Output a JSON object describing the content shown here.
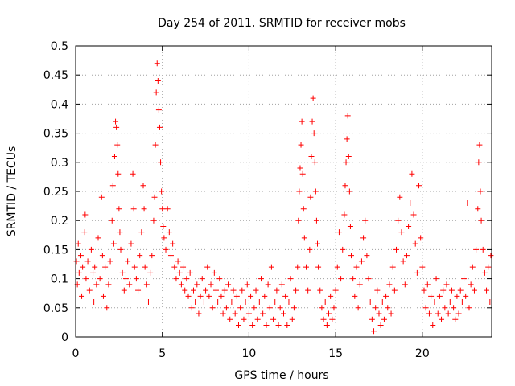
{
  "chart_data": {
    "type": "scatter",
    "title": "Day 254 of 2011, SRMTID for receiver mobs",
    "xlabel": "GPS time / hours",
    "ylabel": "SRMTID / TECUs",
    "xlim": [
      0,
      24
    ],
    "ylim": [
      0,
      0.5
    ],
    "x_ticks": [
      0,
      5,
      10,
      15,
      20
    ],
    "x_tick_labels": [
      "0",
      "5",
      "10",
      "15",
      "20"
    ],
    "y_ticks": [
      0,
      0.05,
      0.1,
      0.15,
      0.2,
      0.25,
      0.3,
      0.35,
      0.4,
      0.45,
      0.5
    ],
    "y_tick_labels": [
      "0",
      "0.05",
      "0.1",
      "0.15",
      "0.2",
      "0.25",
      "0.3",
      "0.35",
      "0.4",
      "0.45",
      "0.5"
    ],
    "grid": true,
    "marker": "+",
    "series": [
      {
        "name": "SRMTID",
        "color": "#ff0000",
        "points": [
          [
            0.05,
            0.13
          ],
          [
            0.1,
            0.09
          ],
          [
            0.15,
            0.16
          ],
          [
            0.2,
            0.11
          ],
          [
            0.3,
            0.14
          ],
          [
            0.35,
            0.07
          ],
          [
            0.4,
            0.12
          ],
          [
            0.5,
            0.18
          ],
          [
            0.55,
            0.21
          ],
          [
            0.6,
            0.1
          ],
          [
            0.7,
            0.13
          ],
          [
            0.8,
            0.08
          ],
          [
            0.9,
            0.15
          ],
          [
            1.0,
            0.11
          ],
          [
            1.05,
            0.06
          ],
          [
            1.1,
            0.12
          ],
          [
            1.2,
            0.09
          ],
          [
            1.3,
            0.17
          ],
          [
            1.4,
            0.1
          ],
          [
            1.5,
            0.24
          ],
          [
            1.55,
            0.14
          ],
          [
            1.6,
            0.07
          ],
          [
            1.7,
            0.12
          ],
          [
            1.8,
            0.05
          ],
          [
            1.9,
            0.09
          ],
          [
            2.0,
            0.13
          ],
          [
            2.1,
            0.2
          ],
          [
            2.15,
            0.26
          ],
          [
            2.2,
            0.16
          ],
          [
            2.25,
            0.31
          ],
          [
            2.3,
            0.37
          ],
          [
            2.35,
            0.36
          ],
          [
            2.4,
            0.33
          ],
          [
            2.45,
            0.28
          ],
          [
            2.5,
            0.22
          ],
          [
            2.55,
            0.18
          ],
          [
            2.6,
            0.15
          ],
          [
            2.7,
            0.11
          ],
          [
            2.8,
            0.08
          ],
          [
            2.9,
            0.1
          ],
          [
            3.0,
            0.13
          ],
          [
            3.1,
            0.09
          ],
          [
            3.2,
            0.16
          ],
          [
            3.3,
            0.28
          ],
          [
            3.35,
            0.22
          ],
          [
            3.4,
            0.12
          ],
          [
            3.5,
            0.1
          ],
          [
            3.6,
            0.08
          ],
          [
            3.7,
            0.14
          ],
          [
            3.8,
            0.18
          ],
          [
            3.9,
            0.26
          ],
          [
            3.95,
            0.22
          ],
          [
            4.0,
            0.12
          ],
          [
            4.1,
            0.09
          ],
          [
            4.2,
            0.06
          ],
          [
            4.3,
            0.11
          ],
          [
            4.4,
            0.14
          ],
          [
            4.5,
            0.2
          ],
          [
            4.55,
            0.24
          ],
          [
            4.6,
            0.33
          ],
          [
            4.65,
            0.42
          ],
          [
            4.7,
            0.47
          ],
          [
            4.75,
            0.44
          ],
          [
            4.8,
            0.39
          ],
          [
            4.85,
            0.36
          ],
          [
            4.9,
            0.3
          ],
          [
            4.95,
            0.25
          ],
          [
            5.0,
            0.22
          ],
          [
            5.05,
            0.19
          ],
          [
            5.1,
            0.17
          ],
          [
            5.2,
            0.15
          ],
          [
            5.3,
            0.22
          ],
          [
            5.4,
            0.18
          ],
          [
            5.5,
            0.14
          ],
          [
            5.6,
            0.16
          ],
          [
            5.7,
            0.12
          ],
          [
            5.8,
            0.1
          ],
          [
            5.9,
            0.13
          ],
          [
            6.0,
            0.11
          ],
          [
            6.1,
            0.09
          ],
          [
            6.2,
            0.12
          ],
          [
            6.3,
            0.08
          ],
          [
            6.4,
            0.1
          ],
          [
            6.5,
            0.07
          ],
          [
            6.6,
            0.11
          ],
          [
            6.7,
            0.05
          ],
          [
            6.8,
            0.08
          ],
          [
            6.9,
            0.06
          ],
          [
            7.0,
            0.09
          ],
          [
            7.1,
            0.04
          ],
          [
            7.2,
            0.07
          ],
          [
            7.3,
            0.1
          ],
          [
            7.4,
            0.06
          ],
          [
            7.5,
            0.08
          ],
          [
            7.6,
            0.12
          ],
          [
            7.7,
            0.07
          ],
          [
            7.8,
            0.09
          ],
          [
            7.9,
            0.05
          ],
          [
            8.0,
            0.11
          ],
          [
            8.1,
            0.08
          ],
          [
            8.2,
            0.06
          ],
          [
            8.3,
            0.1
          ],
          [
            8.4,
            0.07
          ],
          [
            8.5,
            0.04
          ],
          [
            8.6,
            0.08
          ],
          [
            8.7,
            0.05
          ],
          [
            8.8,
            0.09
          ],
          [
            8.9,
            0.03
          ],
          [
            9.0,
            0.06
          ],
          [
            9.1,
            0.08
          ],
          [
            9.2,
            0.04
          ],
          [
            9.3,
            0.07
          ],
          [
            9.4,
            0.02
          ],
          [
            9.5,
            0.05
          ],
          [
            9.6,
            0.08
          ],
          [
            9.7,
            0.03
          ],
          [
            9.8,
            0.06
          ],
          [
            9.9,
            0.09
          ],
          [
            10.0,
            0.04
          ],
          [
            10.1,
            0.07
          ],
          [
            10.2,
            0.02
          ],
          [
            10.3,
            0.05
          ],
          [
            10.4,
            0.08
          ],
          [
            10.5,
            0.03
          ],
          [
            10.6,
            0.06
          ],
          [
            10.7,
            0.1
          ],
          [
            10.8,
            0.04
          ],
          [
            10.9,
            0.07
          ],
          [
            11.0,
            0.02
          ],
          [
            11.1,
            0.09
          ],
          [
            11.2,
            0.05
          ],
          [
            11.3,
            0.12
          ],
          [
            11.4,
            0.03
          ],
          [
            11.5,
            0.06
          ],
          [
            11.6,
            0.08
          ],
          [
            11.7,
            0.02
          ],
          [
            11.8,
            0.05
          ],
          [
            11.9,
            0.09
          ],
          [
            12.0,
            0.04
          ],
          [
            12.1,
            0.07
          ],
          [
            12.2,
            0.02
          ],
          [
            12.3,
            0.06
          ],
          [
            12.4,
            0.1
          ],
          [
            12.5,
            0.03
          ],
          [
            12.6,
            0.05
          ],
          [
            12.7,
            0.08
          ],
          [
            12.8,
            0.12
          ],
          [
            12.85,
            0.2
          ],
          [
            12.9,
            0.25
          ],
          [
            12.95,
            0.29
          ],
          [
            13.0,
            0.33
          ],
          [
            13.05,
            0.37
          ],
          [
            13.1,
            0.28
          ],
          [
            13.15,
            0.22
          ],
          [
            13.2,
            0.17
          ],
          [
            13.3,
            0.12
          ],
          [
            13.4,
            0.08
          ],
          [
            13.5,
            0.15
          ],
          [
            13.55,
            0.24
          ],
          [
            13.6,
            0.31
          ],
          [
            13.65,
            0.37
          ],
          [
            13.7,
            0.41
          ],
          [
            13.75,
            0.35
          ],
          [
            13.8,
            0.3
          ],
          [
            13.85,
            0.25
          ],
          [
            13.9,
            0.2
          ],
          [
            13.95,
            0.16
          ],
          [
            14.0,
            0.12
          ],
          [
            14.1,
            0.08
          ],
          [
            14.2,
            0.05
          ],
          [
            14.3,
            0.03
          ],
          [
            14.4,
            0.06
          ],
          [
            14.5,
            0.02
          ],
          [
            14.6,
            0.04
          ],
          [
            14.7,
            0.07
          ],
          [
            14.8,
            0.03
          ],
          [
            14.9,
            0.05
          ],
          [
            15.0,
            0.08
          ],
          [
            15.1,
            0.12
          ],
          [
            15.2,
            0.18
          ],
          [
            15.3,
            0.1
          ],
          [
            15.4,
            0.15
          ],
          [
            15.5,
            0.21
          ],
          [
            15.55,
            0.26
          ],
          [
            15.6,
            0.3
          ],
          [
            15.65,
            0.34
          ],
          [
            15.7,
            0.38
          ],
          [
            15.75,
            0.31
          ],
          [
            15.8,
            0.25
          ],
          [
            15.85,
            0.19
          ],
          [
            15.9,
            0.14
          ],
          [
            16.0,
            0.1
          ],
          [
            16.1,
            0.07
          ],
          [
            16.2,
            0.12
          ],
          [
            16.3,
            0.05
          ],
          [
            16.4,
            0.09
          ],
          [
            16.5,
            0.13
          ],
          [
            16.6,
            0.17
          ],
          [
            16.7,
            0.2
          ],
          [
            16.8,
            0.14
          ],
          [
            16.9,
            0.1
          ],
          [
            17.0,
            0.06
          ],
          [
            17.1,
            0.03
          ],
          [
            17.2,
            0.01
          ],
          [
            17.3,
            0.05
          ],
          [
            17.4,
            0.08
          ],
          [
            17.5,
            0.04
          ],
          [
            17.6,
            0.02
          ],
          [
            17.7,
            0.06
          ],
          [
            17.8,
            0.03
          ],
          [
            17.9,
            0.07
          ],
          [
            18.0,
            0.05
          ],
          [
            18.1,
            0.09
          ],
          [
            18.2,
            0.04
          ],
          [
            18.3,
            0.12
          ],
          [
            18.4,
            0.08
          ],
          [
            18.5,
            0.15
          ],
          [
            18.6,
            0.2
          ],
          [
            18.7,
            0.24
          ],
          [
            18.8,
            0.18
          ],
          [
            18.9,
            0.13
          ],
          [
            19.0,
            0.09
          ],
          [
            19.1,
            0.14
          ],
          [
            19.2,
            0.19
          ],
          [
            19.3,
            0.23
          ],
          [
            19.4,
            0.28
          ],
          [
            19.5,
            0.21
          ],
          [
            19.6,
            0.16
          ],
          [
            19.7,
            0.11
          ],
          [
            19.8,
            0.26
          ],
          [
            19.9,
            0.17
          ],
          [
            20.0,
            0.12
          ],
          [
            20.1,
            0.08
          ],
          [
            20.2,
            0.05
          ],
          [
            20.3,
            0.09
          ],
          [
            20.4,
            0.04
          ],
          [
            20.5,
            0.07
          ],
          [
            20.6,
            0.02
          ],
          [
            20.7,
            0.06
          ],
          [
            20.8,
            0.1
          ],
          [
            20.9,
            0.04
          ],
          [
            21.0,
            0.07
          ],
          [
            21.1,
            0.03
          ],
          [
            21.2,
            0.08
          ],
          [
            21.3,
            0.05
          ],
          [
            21.4,
            0.09
          ],
          [
            21.5,
            0.04
          ],
          [
            21.6,
            0.06
          ],
          [
            21.7,
            0.08
          ],
          [
            21.8,
            0.05
          ],
          [
            21.9,
            0.03
          ],
          [
            22.0,
            0.07
          ],
          [
            22.1,
            0.04
          ],
          [
            22.2,
            0.08
          ],
          [
            22.3,
            0.06
          ],
          [
            22.4,
            0.1
          ],
          [
            22.5,
            0.07
          ],
          [
            22.6,
            0.23
          ],
          [
            22.7,
            0.05
          ],
          [
            22.8,
            0.09
          ],
          [
            22.9,
            0.12
          ],
          [
            23.0,
            0.08
          ],
          [
            23.1,
            0.15
          ],
          [
            23.2,
            0.22
          ],
          [
            23.25,
            0.3
          ],
          [
            23.3,
            0.33
          ],
          [
            23.35,
            0.25
          ],
          [
            23.4,
            0.2
          ],
          [
            23.5,
            0.15
          ],
          [
            23.6,
            0.11
          ],
          [
            23.7,
            0.08
          ],
          [
            23.8,
            0.12
          ],
          [
            23.9,
            0.06
          ],
          [
            23.95,
            0.14
          ]
        ]
      }
    ]
  }
}
